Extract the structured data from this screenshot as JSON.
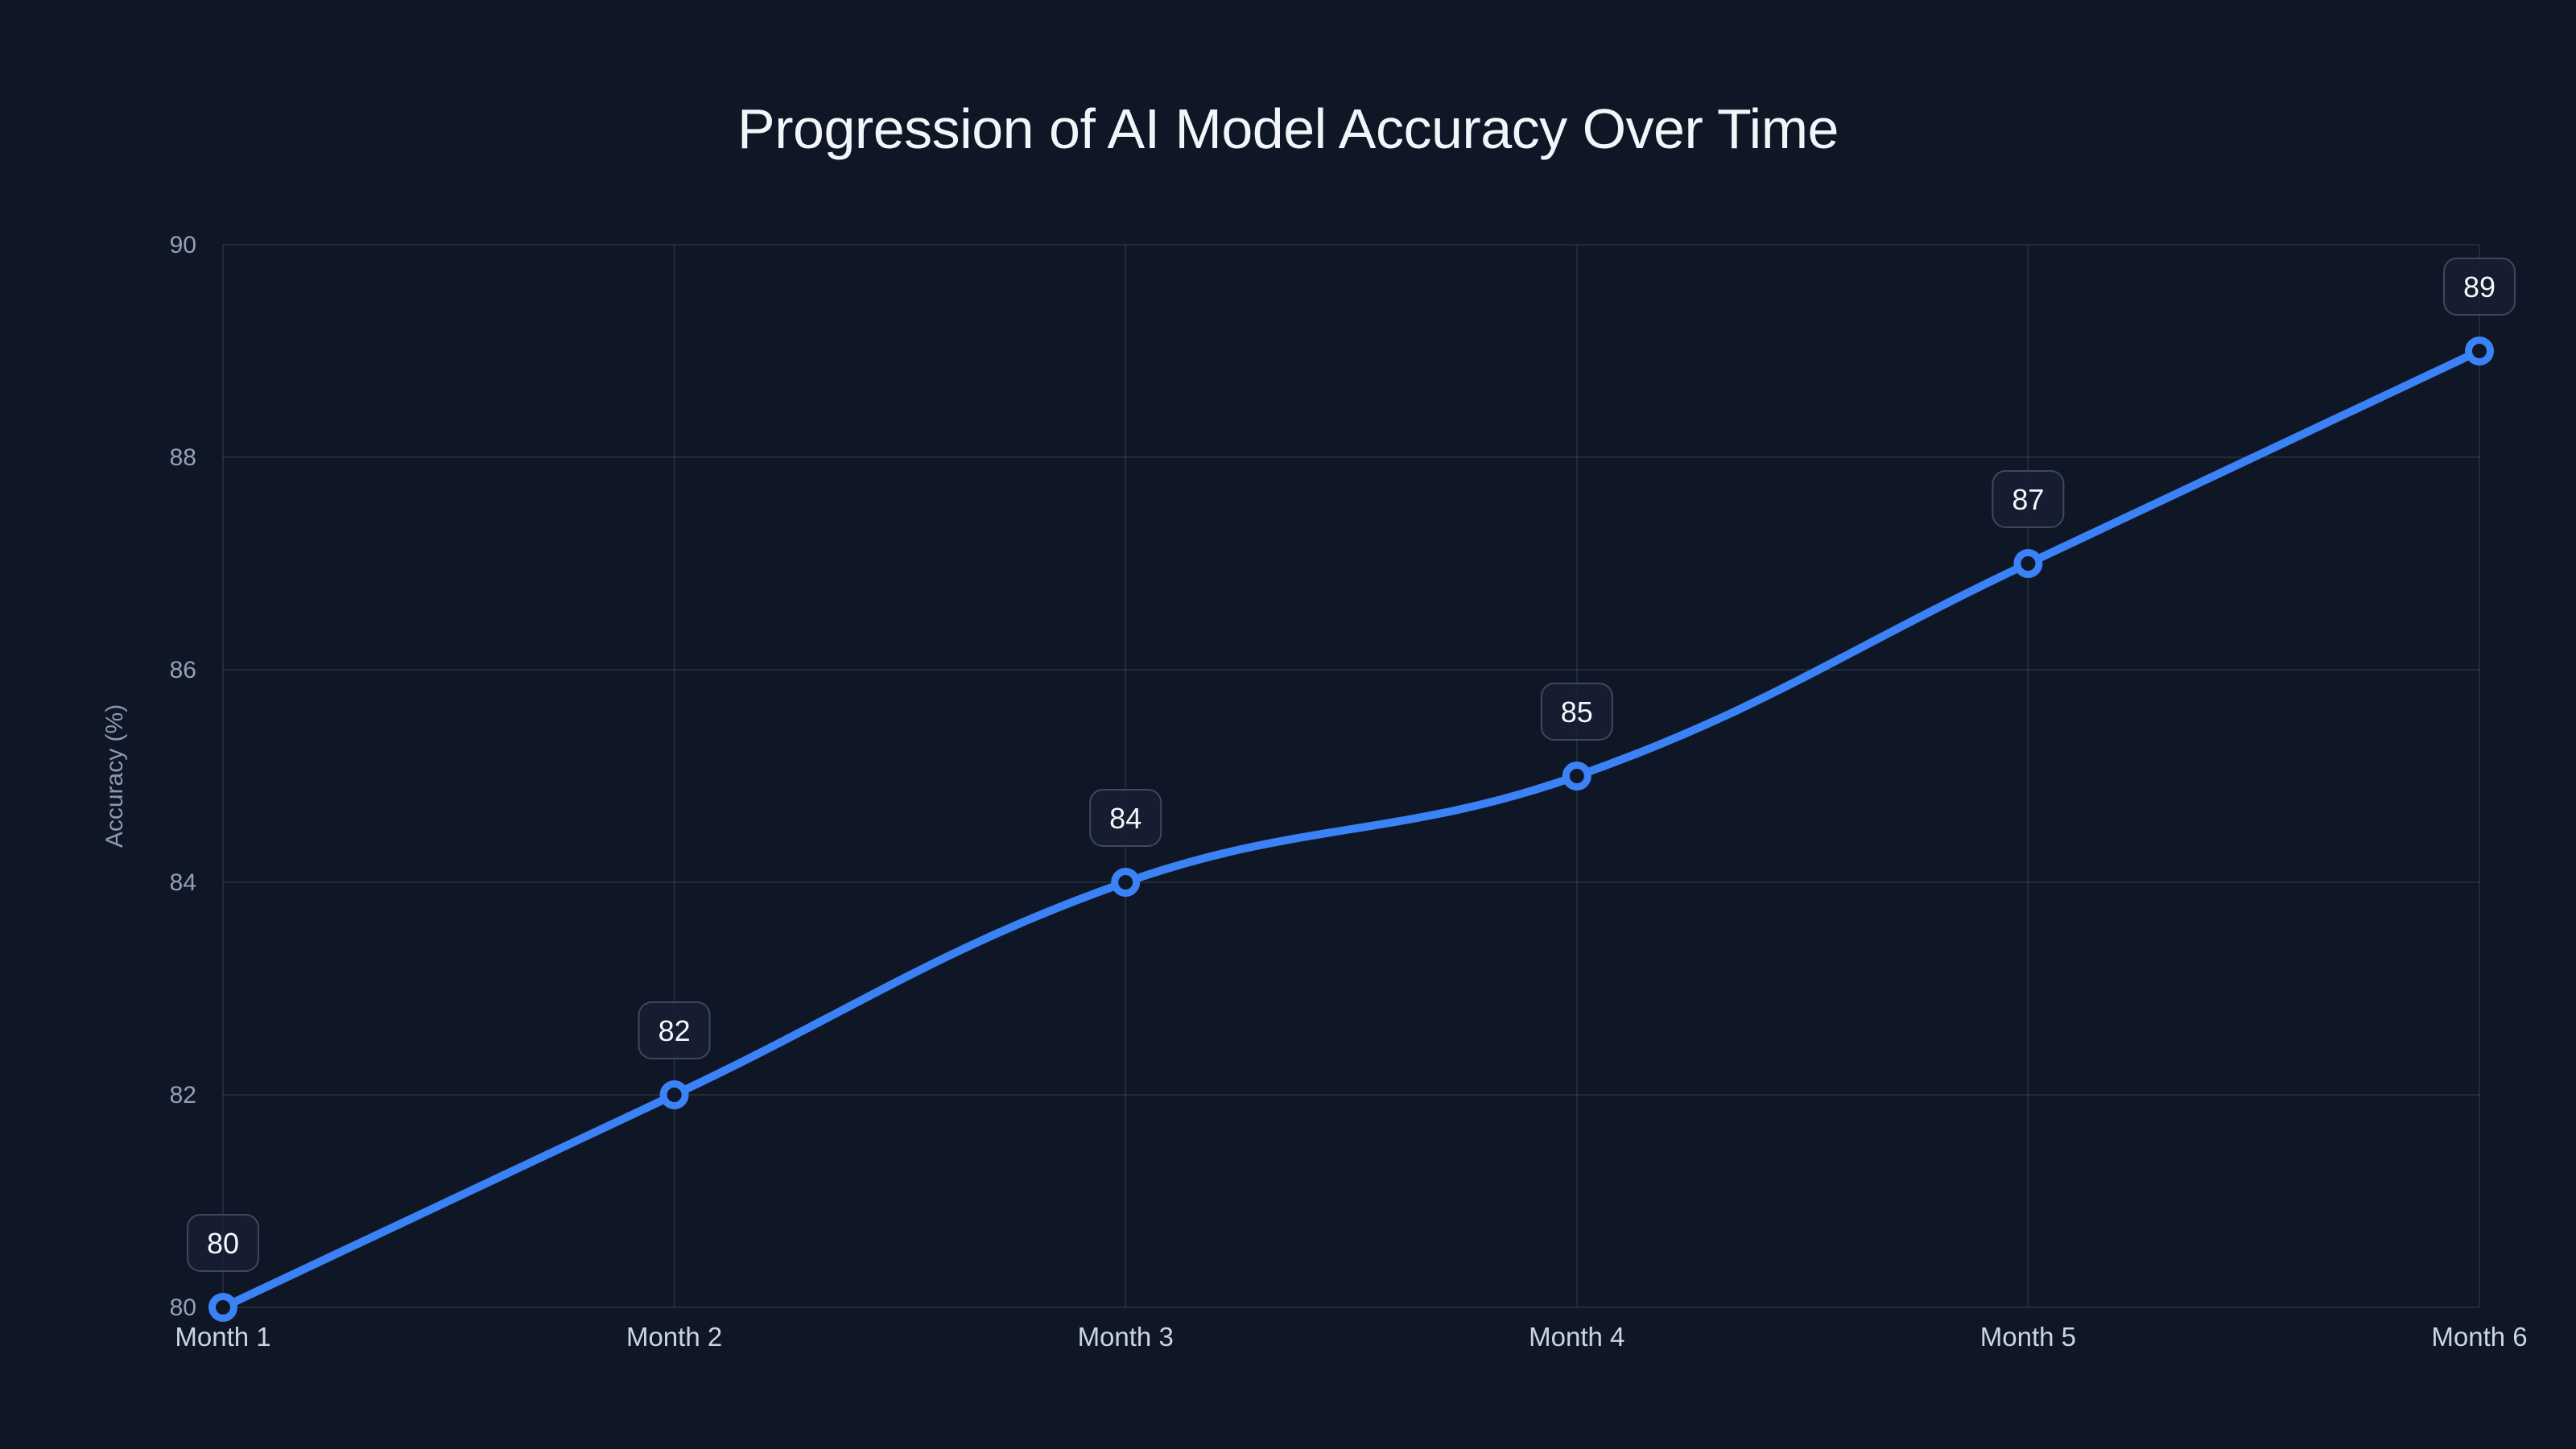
{
  "chart_data": {
    "type": "line",
    "title": "Progression of AI Model Accuracy Over Time",
    "xlabel": "",
    "ylabel": "Accuracy (%)",
    "categories": [
      "Month 1",
      "Month 2",
      "Month 3",
      "Month 4",
      "Month 5",
      "Month 6"
    ],
    "series": [
      {
        "name": "Accuracy",
        "values": [
          80,
          82,
          84,
          85,
          87,
          89
        ]
      }
    ],
    "point_labels": [
      "80",
      "82",
      "84",
      "85",
      "87",
      "89"
    ],
    "ylim": [
      80,
      90
    ],
    "yticks": [
      80,
      82,
      84,
      86,
      88,
      90
    ],
    "grid": "on",
    "legend": "none",
    "line_tension": 0.4
  },
  "colors": {
    "background": "#0f1726",
    "line": "#3b82f6",
    "marker_stroke": "#3b82f6",
    "marker_fill": "#0f1726",
    "grid": "rgba(148,163,184,0.15)",
    "tick_label": "#94a0b5",
    "x_label": "#cbd5e1",
    "axis_title": "#8c99ae",
    "title": "#f2f5f9",
    "badge_fill": "rgba(23,31,51,0.85)",
    "badge_border": "#3d4860",
    "badge_text": "#f5f7fa"
  }
}
